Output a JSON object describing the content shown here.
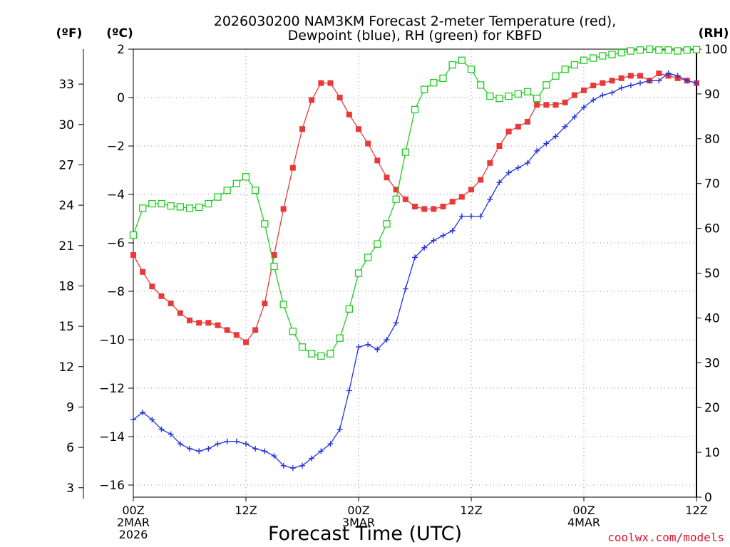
{
  "title_line1": "2026030200 NAM3KM Forecast 2-meter Temperature (red),",
  "title_line2": "Dewpoint (blue), RH (green) for KBFD",
  "left_unit_f": "(ºF)",
  "left_unit_c": "(ºC)",
  "right_unit": "(RH)",
  "xlabel": "Forecast Time (UTC)",
  "credit": "coolwx.com/models",
  "colors": {
    "temp": "#e83a3a",
    "dewpoint": "#2233dd",
    "rh": "#22cc22",
    "axis": "#000000"
  },
  "chart_data": {
    "type": "line",
    "x_unit": "hours since 2026-03-02 00Z",
    "xlim": [
      0,
      60
    ],
    "ylim_c": [
      -16.5,
      2
    ],
    "ylim_rh": [
      0,
      100
    ],
    "yticks_c": [
      {
        "v": 2,
        "label": "2"
      },
      {
        "v": 0,
        "label": "0"
      },
      {
        "v": -2,
        "label": "−2"
      },
      {
        "v": -4,
        "label": "−4"
      },
      {
        "v": -6,
        "label": "−6"
      },
      {
        "v": -8,
        "label": "−8"
      },
      {
        "v": -10,
        "label": "−10"
      },
      {
        "v": -12,
        "label": "−12"
      },
      {
        "v": -14,
        "label": "−14"
      },
      {
        "v": -16,
        "label": "−16"
      }
    ],
    "yticks_f": [
      {
        "v": 33,
        "label": "33"
      },
      {
        "v": 30,
        "label": "30"
      },
      {
        "v": 27,
        "label": "27"
      },
      {
        "v": 24,
        "label": "24"
      },
      {
        "v": 21,
        "label": "21"
      },
      {
        "v": 18,
        "label": "18"
      },
      {
        "v": 15,
        "label": "15"
      },
      {
        "v": 12,
        "label": "12"
      },
      {
        "v": 9,
        "label": "9"
      },
      {
        "v": 6,
        "label": "6"
      },
      {
        "v": 3,
        "label": "3"
      }
    ],
    "yticks_rh": [
      {
        "v": 100,
        "label": "100"
      },
      {
        "v": 90,
        "label": "90"
      },
      {
        "v": 80,
        "label": "80"
      },
      {
        "v": 70,
        "label": "70"
      },
      {
        "v": 60,
        "label": "60"
      },
      {
        "v": 50,
        "label": "50"
      },
      {
        "v": 40,
        "label": "40"
      },
      {
        "v": 30,
        "label": "30"
      },
      {
        "v": 20,
        "label": "20"
      },
      {
        "v": 10,
        "label": "10"
      },
      {
        "v": 0,
        "label": "0"
      }
    ],
    "xticks": [
      {
        "v": 0,
        "lines": [
          "00Z",
          "2MAR",
          "2026"
        ]
      },
      {
        "v": 12,
        "lines": [
          "12Z"
        ]
      },
      {
        "v": 24,
        "lines": [
          "00Z",
          "3MAR"
        ]
      },
      {
        "v": 36,
        "lines": [
          "12Z"
        ]
      },
      {
        "v": 48,
        "lines": [
          "00Z",
          "4MAR"
        ]
      },
      {
        "v": 60,
        "lines": [
          "12Z"
        ]
      }
    ],
    "series": [
      {
        "name": "Temperature",
        "unit": "C",
        "marker": "square-filled",
        "values": [
          -6.5,
          -7.2,
          -7.8,
          -8.2,
          -8.5,
          -8.9,
          -9.2,
          -9.3,
          -9.3,
          -9.4,
          -9.6,
          -9.8,
          -10.1,
          -9.6,
          -8.5,
          -6.5,
          -4.6,
          -2.9,
          -1.3,
          -0.1,
          0.6,
          0.6,
          0.0,
          -0.7,
          -1.3,
          -1.9,
          -2.6,
          -3.3,
          -3.8,
          -4.2,
          -4.5,
          -4.6,
          -4.6,
          -4.5,
          -4.3,
          -4.1,
          -3.8,
          -3.4,
          -2.7,
          -2.0,
          -1.4,
          -1.2,
          -1.0,
          -0.3,
          -0.3,
          -0.3,
          -0.2,
          0.1,
          0.3,
          0.5,
          0.6,
          0.7,
          0.8,
          0.9,
          0.9,
          0.7,
          1.0,
          0.9,
          0.8,
          0.7,
          0.6
        ]
      },
      {
        "name": "Dewpoint",
        "unit": "C",
        "marker": "plus",
        "values": [
          -13.3,
          -13.0,
          -13.3,
          -13.7,
          -13.9,
          -14.3,
          -14.5,
          -14.6,
          -14.5,
          -14.3,
          -14.2,
          -14.2,
          -14.3,
          -14.5,
          -14.6,
          -14.8,
          -15.2,
          -15.3,
          -15.2,
          -14.9,
          -14.6,
          -14.3,
          -13.7,
          -12.1,
          -10.3,
          -10.2,
          -10.4,
          -10.0,
          -9.3,
          -7.9,
          -6.6,
          -6.2,
          -5.9,
          -5.7,
          -5.5,
          -4.9,
          -4.9,
          -4.9,
          -4.2,
          -3.5,
          -3.1,
          -2.9,
          -2.7,
          -2.2,
          -1.9,
          -1.6,
          -1.2,
          -0.8,
          -0.4,
          -0.1,
          0.1,
          0.2,
          0.4,
          0.5,
          0.6,
          0.7,
          0.7,
          1.0,
          0.9,
          0.7,
          0.6
        ]
      },
      {
        "name": "RH",
        "unit": "%",
        "marker": "square-open",
        "values": [
          58.5,
          64.5,
          65.5,
          65.5,
          65.0,
          64.8,
          64.5,
          64.7,
          65.5,
          67.0,
          68.5,
          70.0,
          71.5,
          68.5,
          61.0,
          51.5,
          43.0,
          37.0,
          33.5,
          32.0,
          31.5,
          32.0,
          35.5,
          42.0,
          50.0,
          53.5,
          56.5,
          61.0,
          66.5,
          77.0,
          86.5,
          91.0,
          92.5,
          93.5,
          96.5,
          97.5,
          95.5,
          92.0,
          89.5,
          89.0,
          89.5,
          90.0,
          90.5,
          89.0,
          92.0,
          94.0,
          95.5,
          96.5,
          97.5,
          98.0,
          98.5,
          98.8,
          99.2,
          99.6,
          99.8,
          100,
          99.8,
          99.8,
          99.6,
          99.8,
          99.9
        ]
      }
    ]
  }
}
